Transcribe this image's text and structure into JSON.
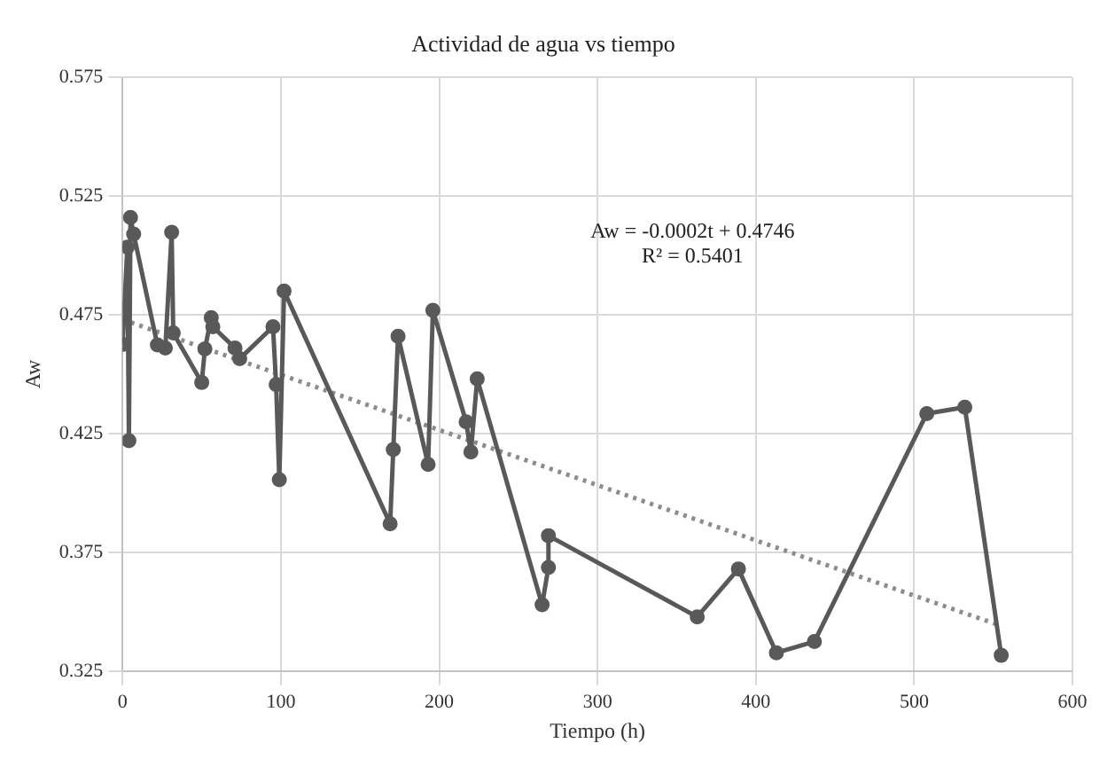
{
  "chart_data": {
    "type": "line",
    "title": "Actividad de agua vs tiempo",
    "xlabel": "Tiempo (h)",
    "ylabel": "Aw",
    "annotations": [
      "Aw = -0.0002t + 0.4746",
      "R² = 0.5401"
    ],
    "series": [
      {
        "color": "#595959",
        "marker": "circle",
        "x": [
          0,
          3,
          4,
          5,
          7,
          22,
          27,
          31,
          32,
          50,
          52,
          56,
          57,
          71,
          74,
          95,
          97,
          99,
          102,
          169,
          171,
          174,
          193,
          196,
          217,
          220,
          224,
          265,
          269,
          269,
          363,
          389,
          413,
          437,
          508,
          532,
          555
        ],
        "values": [
          0.4625,
          0.5035,
          0.422,
          0.516,
          0.509,
          0.4623,
          0.461,
          0.5097,
          0.4674,
          0.4465,
          0.4606,
          0.4738,
          0.47,
          0.461,
          0.4565,
          0.47,
          0.4456,
          0.4056,
          0.485,
          0.387,
          0.4183,
          0.466,
          0.412,
          0.4769,
          0.4299,
          0.4172,
          0.448,
          0.3529,
          0.3686,
          0.382,
          0.3478,
          0.368,
          0.3327,
          0.3374,
          0.4334,
          0.4361,
          0.3316
        ]
      },
      {
        "color": "#8c8c8c",
        "marker": "none",
        "line_style": "dotted",
        "x": [
          0,
          555
        ],
        "values": [
          0.473,
          0.344
        ]
      }
    ],
    "xlim": [
      0,
      600
    ],
    "xticks": [
      0,
      100,
      200,
      300,
      400,
      500,
      600
    ],
    "ylim": [
      0.325,
      0.575
    ],
    "yticks": [
      0.325,
      0.375,
      0.425,
      0.475,
      0.525,
      0.575
    ],
    "grid": true,
    "legend": false
  }
}
